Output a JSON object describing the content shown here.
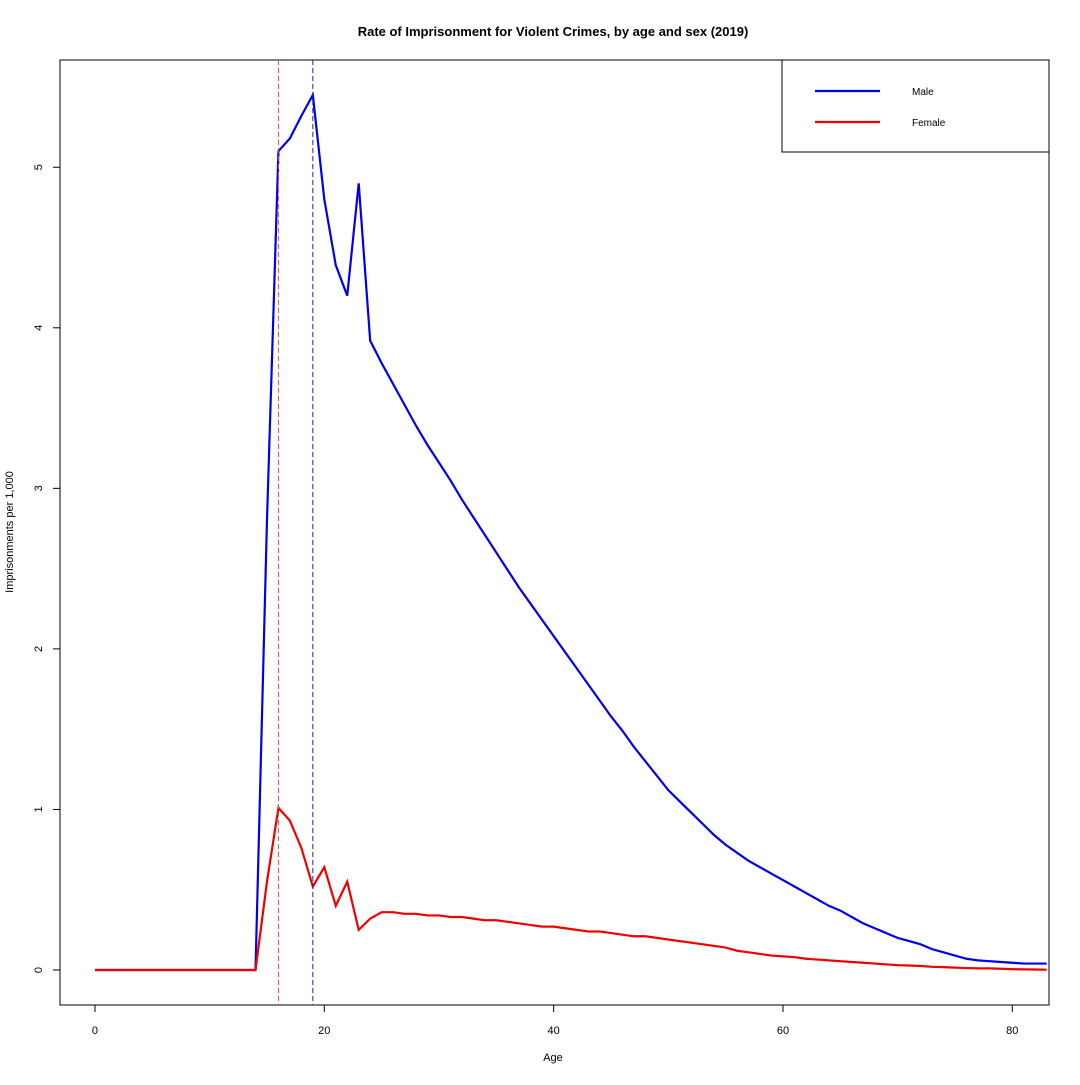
{
  "chart_data": {
    "type": "line",
    "title": "Rate of Imprisonment for Violent Crimes, by age and sex (2019)",
    "x_label": "Age",
    "y_label": "Imprisonments per 1,000",
    "x": [
      0,
      1,
      2,
      3,
      4,
      5,
      6,
      7,
      8,
      9,
      10,
      11,
      12,
      13,
      14,
      15,
      16,
      17,
      18,
      19,
      20,
      21,
      22,
      23,
      24,
      25,
      26,
      27,
      28,
      29,
      30,
      31,
      32,
      33,
      34,
      35,
      36,
      37,
      38,
      39,
      40,
      41,
      42,
      43,
      44,
      45,
      46,
      47,
      48,
      49,
      50,
      51,
      52,
      53,
      54,
      55,
      56,
      57,
      58,
      59,
      60,
      61,
      62,
      63,
      64,
      65,
      66,
      67,
      68,
      69,
      70,
      71,
      72,
      73,
      74,
      75,
      76,
      77,
      78,
      79,
      80,
      81,
      82,
      83
    ],
    "series": [
      {
        "name": "Male",
        "color": "#0000ee",
        "values": [
          0,
          0,
          0,
          0,
          0,
          0,
          0,
          0,
          0,
          0,
          0,
          0,
          0,
          0,
          0,
          2.8,
          5.1,
          5.18,
          5.32,
          5.45,
          4.8,
          4.39,
          4.2,
          4.9,
          3.92,
          3.78,
          3.65,
          3.52,
          3.39,
          3.27,
          3.16,
          3.05,
          2.93,
          2.82,
          2.71,
          2.6,
          2.49,
          2.38,
          2.28,
          2.18,
          2.08,
          1.98,
          1.88,
          1.78,
          1.68,
          1.58,
          1.49,
          1.39,
          1.3,
          1.21,
          1.12,
          1.05,
          0.98,
          0.91,
          0.84,
          0.78,
          0.73,
          0.68,
          0.64,
          0.6,
          0.56,
          0.52,
          0.48,
          0.44,
          0.4,
          0.37,
          0.33,
          0.29,
          0.26,
          0.23,
          0.2,
          0.18,
          0.16,
          0.13,
          0.11,
          0.09,
          0.07,
          0.06,
          0.055,
          0.05,
          0.045,
          0.04,
          0.04,
          0.04
        ]
      },
      {
        "name": "Female",
        "color": "#ee0000",
        "values": [
          0,
          0,
          0,
          0,
          0,
          0,
          0,
          0,
          0,
          0,
          0,
          0,
          0,
          0,
          0,
          0.55,
          1.01,
          0.93,
          0.76,
          0.52,
          0.64,
          0.4,
          0.55,
          0.25,
          0.32,
          0.36,
          0.36,
          0.35,
          0.35,
          0.34,
          0.34,
          0.33,
          0.33,
          0.32,
          0.31,
          0.31,
          0.3,
          0.29,
          0.28,
          0.27,
          0.27,
          0.26,
          0.25,
          0.24,
          0.24,
          0.23,
          0.22,
          0.21,
          0.21,
          0.2,
          0.19,
          0.18,
          0.17,
          0.16,
          0.15,
          0.14,
          0.12,
          0.11,
          0.1,
          0.09,
          0.085,
          0.08,
          0.07,
          0.065,
          0.06,
          0.055,
          0.05,
          0.045,
          0.04,
          0.035,
          0.03,
          0.028,
          0.025,
          0.02,
          0.018,
          0.015,
          0.012,
          0.01,
          0.01,
          0.008,
          0.005,
          0.004,
          0.003,
          0.002
        ]
      }
    ],
    "vlines": [
      {
        "x": 16,
        "color": "#e05050"
      },
      {
        "x": 19,
        "color": "#2020b0"
      }
    ],
    "xlim": [
      -3.05,
      83.2
    ],
    "ylim": [
      -0.218,
      5.668
    ],
    "xticks": [
      0,
      20,
      40,
      60,
      80
    ],
    "yticks": [
      0,
      1,
      2,
      3,
      4,
      5
    ],
    "legend": "topright"
  }
}
